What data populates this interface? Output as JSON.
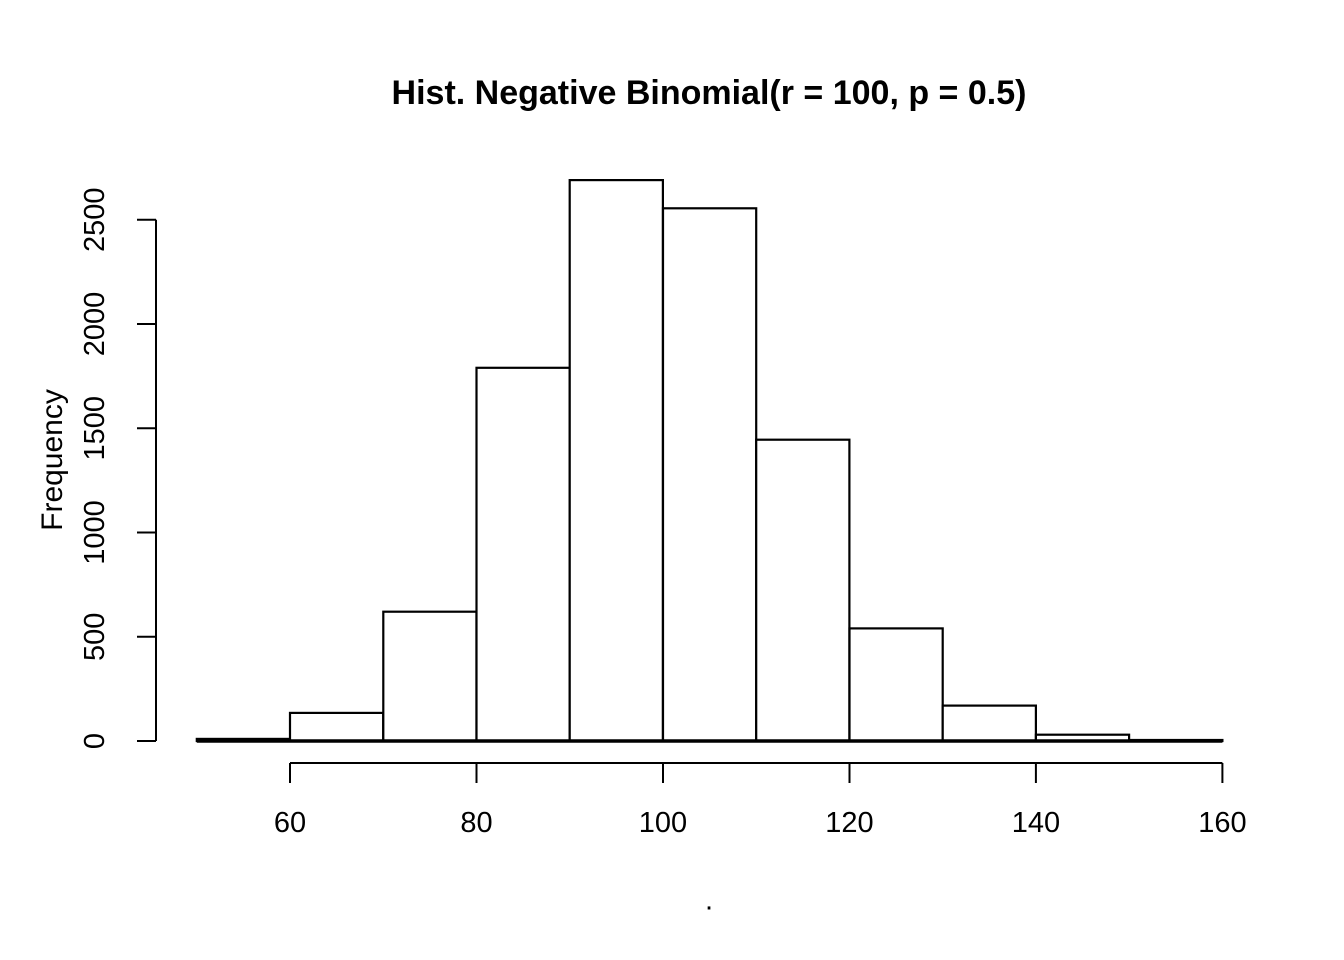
{
  "page": {
    "background": "#ffffff",
    "foreground": "#000000"
  },
  "chart_data": {
    "type": "bar",
    "subtype": "histogram",
    "title": "Hist. Negative Binomial(r = 100, p = 0.5)",
    "xlabel": ".",
    "ylabel": "Frequency",
    "bin_edges": [
      50,
      60,
      70,
      80,
      90,
      100,
      110,
      120,
      130,
      140,
      150,
      160
    ],
    "counts": [
      10,
      135,
      620,
      1790,
      2690,
      2555,
      1445,
      540,
      170,
      30,
      5
    ],
    "x_ticks": [
      60,
      80,
      100,
      120,
      140,
      160
    ],
    "y_ticks": [
      0,
      500,
      1000,
      1500,
      2000,
      2500
    ],
    "xlim": [
      50,
      160
    ],
    "ylim": [
      0,
      2500
    ],
    "bar_fill": "#ffffff",
    "bar_stroke": "#000000",
    "axis_color": "#000000",
    "grid": false,
    "legend": false
  }
}
